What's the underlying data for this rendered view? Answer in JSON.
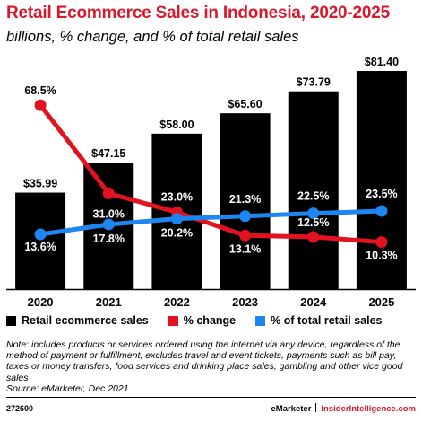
{
  "title": "Retail Ecommerce Sales in Indonesia, 2020-2025",
  "subtitle": "billions, % change, and % of total retail sales",
  "chart_data": {
    "type": "bar",
    "categories": [
      "2020",
      "2021",
      "2022",
      "2023",
      "2024",
      "2025"
    ],
    "series": [
      {
        "name": "Retail ecommerce sales",
        "type": "bar",
        "color": "#000000",
        "values": [
          35.99,
          47.15,
          58.0,
          65.6,
          73.79,
          81.4
        ],
        "labels": [
          "$35.99",
          "$47.15",
          "$58.00",
          "$65.60",
          "$73.79",
          "$81.40"
        ]
      },
      {
        "name": "% change",
        "type": "line",
        "color": "#e3121f",
        "values": [
          68.5,
          31.0,
          23.0,
          13.1,
          12.5,
          10.3
        ],
        "labels": [
          "68.5%",
          "31.0%",
          "23.0%",
          "13.1%",
          "12.5%",
          "10.3%"
        ]
      },
      {
        "name": "% of total retail sales",
        "type": "line",
        "color": "#1e86f0",
        "values": [
          13.6,
          17.8,
          20.2,
          21.3,
          22.5,
          23.5
        ],
        "labels": [
          "13.6%",
          "17.8%",
          "20.2%",
          "21.3%",
          "22.5%",
          "23.5%"
        ]
      }
    ],
    "legend_position": "bottom"
  },
  "legend": [
    {
      "label": "Retail ecommerce sales",
      "color": "#000000"
    },
    {
      "label": "% change",
      "color": "#e3121f"
    },
    {
      "label": "% of total retail sales",
      "color": "#1e86f0"
    }
  ],
  "note": "Note: includes products or services ordered using the internet via any device, regardless of the method of payment or fulfillment; excludes travel and event tickets, payments such as bill pay, taxes or money transfers, food services and drinking place sales, gambling and other vice good sales",
  "source": "Source: eMarketer, Dec 2021",
  "footer": {
    "chart_id": "272600",
    "brand_a": "eMarketer",
    "brand_b": "InsiderIntelligence.com"
  }
}
